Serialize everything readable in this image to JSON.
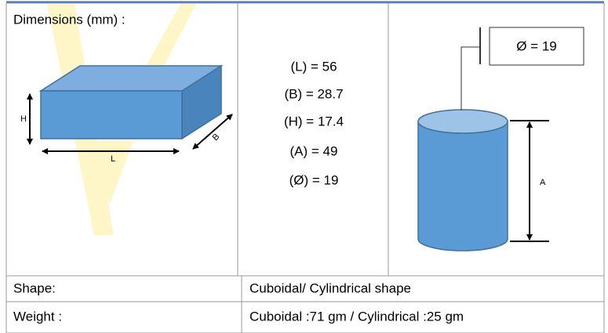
{
  "header": {
    "title": "Dimensions (mm)  :"
  },
  "cuboid": {
    "h": "H",
    "l": "L",
    "b": "B"
  },
  "cylinder": {
    "diameter": "Ø = 19",
    "height": "A"
  },
  "dimensions": [
    "(L) = 56",
    "(B) = 28.7",
    "(H) = 17.4",
    "(A) = 49",
    "(Ø) = 19"
  ],
  "table": {
    "rows": [
      [
        "Shape:",
        "Cuboidal/ Cylindrical shape"
      ],
      [
        "Weight :",
        "Cuboidal :71 gm / Cylindrical :25 gm"
      ]
    ]
  }
}
